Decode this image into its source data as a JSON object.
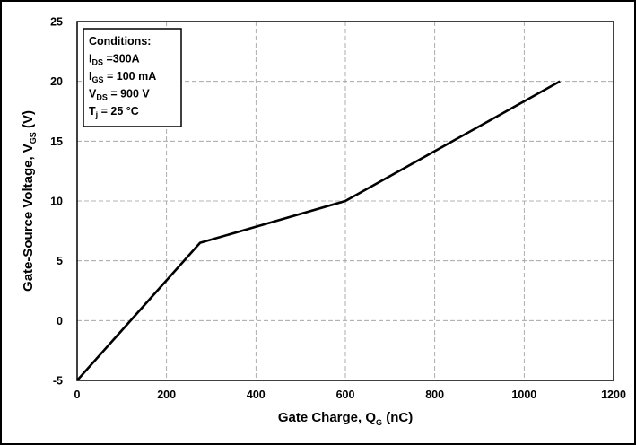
{
  "chart_data": {
    "type": "line",
    "xlabel_main": "Gate Charge, Q",
    "xlabel_sub": "G",
    "xlabel_unit": " (nC)",
    "ylabel_main": "Gate-Source Voltage, V",
    "ylabel_sub": "GS",
    "ylabel_unit": " (V)",
    "xlim": [
      0,
      1200
    ],
    "ylim": [
      -5,
      25
    ],
    "x_ticks": [
      0,
      200,
      400,
      600,
      800,
      1000,
      1200
    ],
    "y_ticks": [
      -5,
      0,
      5,
      10,
      15,
      20,
      25
    ],
    "grid": true,
    "grid_style": "dashed",
    "series": [
      {
        "x": [
          0,
          275,
          600,
          1080
        ],
        "y": [
          -5,
          6.5,
          10,
          20
        ],
        "color": "#000000"
      }
    ],
    "conditions": {
      "title": "Conditions:",
      "lines": [
        {
          "main": "I",
          "sub": "DS",
          "rest": " =300A"
        },
        {
          "main": "I",
          "sub": "GS",
          "rest": " = 100 mA"
        },
        {
          "main": "V",
          "sub": "DS",
          "rest": " = 900 V"
        },
        {
          "main": "T",
          "sub": "j",
          "rest": " = 25 °C"
        }
      ]
    }
  }
}
